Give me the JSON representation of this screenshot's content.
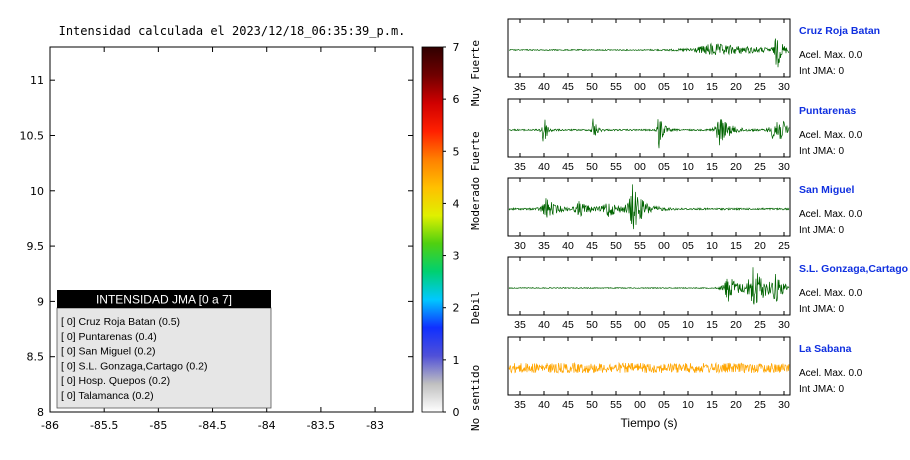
{
  "chart_data": [
    {
      "type": "heatmap",
      "title": "Intensidad calculada el 2023/12/18_06:35:39_p.m.",
      "xlim": [
        -86,
        -82.65
      ],
      "ylim": [
        8,
        11.3
      ],
      "x_ticks": [
        "-86",
        "-85.5",
        "-85",
        "-84.5",
        "-84",
        "-83.5",
        "-83"
      ],
      "x_tick_values": [
        -86,
        -85.5,
        -85,
        -84.5,
        -84,
        -83.5,
        -83
      ],
      "y_ticks": [
        "8",
        "8.5",
        "9",
        "9.5",
        "10",
        "10.5",
        "11"
      ],
      "y_tick_values": [
        8,
        8.5,
        9,
        9.5,
        10,
        10.5,
        11
      ],
      "colorbar": {
        "ticks": [
          "0",
          "1",
          "2",
          "3",
          "4",
          "5",
          "6",
          "7"
        ],
        "range": [
          0,
          7
        ],
        "labels": [
          {
            "text": "No sentido",
            "value": 0.5
          },
          {
            "text": "Debil",
            "value": 2
          },
          {
            "text": "Moderado",
            "value": 4
          },
          {
            "text": "Fuerte",
            "value": 5
          },
          {
            "text": "Muy Fuerte",
            "value": 6.5
          }
        ],
        "colors": [
          "#ffffff",
          "#c0c0c0",
          "#5050d8",
          "#1030ff",
          "#00c8ff",
          "#00d070",
          "#50d010",
          "#e0f000",
          "#ffc000",
          "#ff8000",
          "#ff2000",
          "#d00000",
          "#700000",
          "#300000"
        ]
      },
      "land_color": "#b0eef0",
      "legend": {
        "title": "INTENSIDAD JMA [0 a 7]",
        "entries": [
          "[ 0] Cruz Roja Batan (0.5)",
          "[ 0] Puntarenas (0.4)",
          "[ 0] San Miguel (0.2)",
          "[ 0] S.L. Gonzaga,Cartago (0.2)",
          "[ 0] Hosp. Quepos (0.2)",
          "[ 0] Talamanca (0.2)"
        ]
      }
    },
    {
      "type": "line",
      "xlabel": "Tiempo (s)",
      "stations": [
        {
          "name": "Cruz Roja Batan",
          "accel": "Acel. Max. 0.0",
          "jma": "Int JMA: 0",
          "color": "#006400",
          "ticks": [
            "35",
            "40",
            "45",
            "50",
            "55",
            "00",
            "05",
            "10",
            "15",
            "20",
            "25",
            "30"
          ],
          "events": [
            {
              "t": 0.955,
              "amp": 0.9,
              "w": 0.012
            },
            {
              "t": 0.72,
              "amp": 0.25,
              "w": 0.15
            }
          ],
          "noise": 0.06
        },
        {
          "name": "Puntarenas",
          "accel": "Acel. Max. 0.0",
          "jma": "Int JMA: 0",
          "color": "#006400",
          "ticks": [
            "35",
            "40",
            "45",
            "50",
            "55",
            "00",
            "05",
            "10",
            "15",
            "20",
            "25",
            "30"
          ],
          "events": [
            {
              "t": 0.12,
              "amp": 0.95,
              "w": 0.01
            },
            {
              "t": 0.3,
              "amp": 0.55,
              "w": 0.01
            },
            {
              "t": 0.535,
              "amp": 0.85,
              "w": 0.012
            },
            {
              "t": 0.75,
              "amp": 0.6,
              "w": 0.03
            },
            {
              "t": 0.95,
              "amp": 0.75,
              "w": 0.03
            }
          ],
          "noise": 0.08
        },
        {
          "name": "San Miguel",
          "accel": "Acel. Max. 0.0",
          "jma": "Int JMA: 0",
          "color": "#006400",
          "ticks": [
            "30",
            "35",
            "40",
            "45",
            "50",
            "55",
            "00",
            "05",
            "10",
            "15",
            "20",
            "25"
          ],
          "events": [
            {
              "t": 0.44,
              "amp": 0.95,
              "w": 0.03
            },
            {
              "t": 0.13,
              "amp": 0.45,
              "w": 0.03
            },
            {
              "t": 0.35,
              "amp": 0.35,
              "w": 0.03
            },
            {
              "t": 0.25,
              "amp": 0.3,
              "w": 0.03
            }
          ],
          "noise": 0.1
        },
        {
          "name": "S.L. Gonzaga,Cartago",
          "accel": "Acel. Max. 0.0",
          "jma": "Int JMA: 0",
          "color": "#006400",
          "ticks": [
            "35",
            "40",
            "45",
            "50",
            "55",
            "00",
            "05",
            "10",
            "15",
            "20",
            "25",
            "30"
          ],
          "events": [
            {
              "t": 0.78,
              "amp": 0.6,
              "w": 0.03
            },
            {
              "t": 0.87,
              "amp": 0.95,
              "w": 0.035
            },
            {
              "t": 0.95,
              "amp": 0.55,
              "w": 0.02
            }
          ],
          "noise": 0.05
        },
        {
          "name": "La Sabana",
          "accel": "Acel. Max. 0.0",
          "jma": "Int JMA: 0",
          "color": "#ffa500",
          "ticks": [
            "35",
            "40",
            "45",
            "50",
            "55",
            "00",
            "05",
            "10",
            "15",
            "20",
            "25",
            "30"
          ],
          "events": [],
          "noise": 0.55
        }
      ]
    }
  ]
}
